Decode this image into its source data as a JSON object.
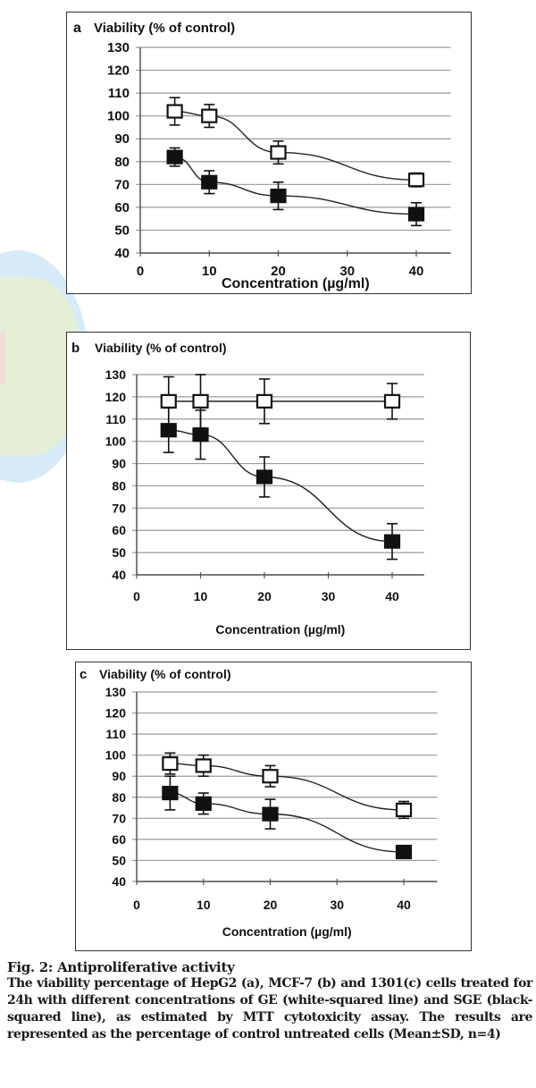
{
  "chart_data": [
    {
      "type": "line",
      "panel_letter": "a",
      "title": "Viability (% of control)",
      "xlabel": "Concentration (µg/ml)",
      "ylabel": "Viability (% of control)",
      "x_ticks": [
        0,
        10,
        20,
        30,
        40
      ],
      "y_ticks": [
        40,
        50,
        60,
        70,
        80,
        90,
        100,
        110,
        120,
        130
      ],
      "xlim": [
        0,
        45
      ],
      "ylim": [
        40,
        130
      ],
      "grid": true,
      "x": [
        5,
        10,
        20,
        40
      ],
      "series": [
        {
          "name": "GE",
          "marker": "white-square",
          "values": [
            102,
            100,
            84,
            72
          ],
          "sd": [
            6,
            5,
            5,
            3
          ]
        },
        {
          "name": "SGE",
          "marker": "black-square",
          "values": [
            82,
            71,
            65,
            57
          ],
          "sd": [
            4,
            5,
            6,
            5
          ]
        }
      ]
    },
    {
      "type": "line",
      "panel_letter": "b",
      "title": "Viability (% of control)",
      "xlabel": "Concentration (µg/ml)",
      "ylabel": "Viability (% of control)",
      "x_ticks": [
        0,
        10,
        20,
        30,
        40
      ],
      "y_ticks": [
        40,
        50,
        60,
        70,
        80,
        90,
        100,
        110,
        120,
        130
      ],
      "xlim": [
        0,
        45
      ],
      "ylim": [
        40,
        130
      ],
      "grid": true,
      "x": [
        5,
        10,
        20,
        40
      ],
      "series": [
        {
          "name": "GE",
          "marker": "white-square",
          "values": [
            118,
            118,
            118,
            118
          ],
          "sd": [
            11,
            12,
            10,
            8
          ]
        },
        {
          "name": "SGE",
          "marker": "black-square",
          "values": [
            105,
            103,
            84,
            55
          ],
          "sd": [
            10,
            11,
            9,
            8
          ]
        }
      ]
    },
    {
      "type": "line",
      "panel_letter": "c",
      "title": "Viability (% of control)",
      "xlabel": "Concentration (µg/ml)",
      "ylabel": "Viability (% of control)",
      "x_ticks": [
        0,
        10,
        20,
        30,
        40
      ],
      "y_ticks": [
        40,
        50,
        60,
        70,
        80,
        90,
        100,
        110,
        120,
        130
      ],
      "xlim": [
        0,
        45
      ],
      "ylim": [
        40,
        130
      ],
      "grid": true,
      "x": [
        5,
        10,
        20,
        40
      ],
      "series": [
        {
          "name": "GE",
          "marker": "white-square",
          "values": [
            96,
            95,
            90,
            74
          ],
          "sd": [
            5,
            5,
            5,
            4
          ]
        },
        {
          "name": "SGE",
          "marker": "black-square",
          "values": [
            82,
            77,
            72,
            54
          ],
          "sd": [
            8,
            5,
            7,
            1
          ]
        }
      ]
    }
  ],
  "caption": {
    "title": "Fig. 2: Antiproliferative activity",
    "body": "The viability percentage of HepG2 (a), MCF-7 (b) and 1301(c) cells treated for 24h with different concentrations of GE (white-squared line) and SGE (black-squared line), as estimated by MTT cytotoxicity assay. The results are represented as the percentage of control untreated cells (Mean±SD, n=4)"
  },
  "colors": {
    "gridline": "#9a9a9a",
    "axis": "#555555",
    "marker_dark": "#111111",
    "marker_light": "#ffffff",
    "text": "#111111",
    "watermark_blue": "#d6ebf7",
    "watermark_green": "#e4efd5"
  }
}
